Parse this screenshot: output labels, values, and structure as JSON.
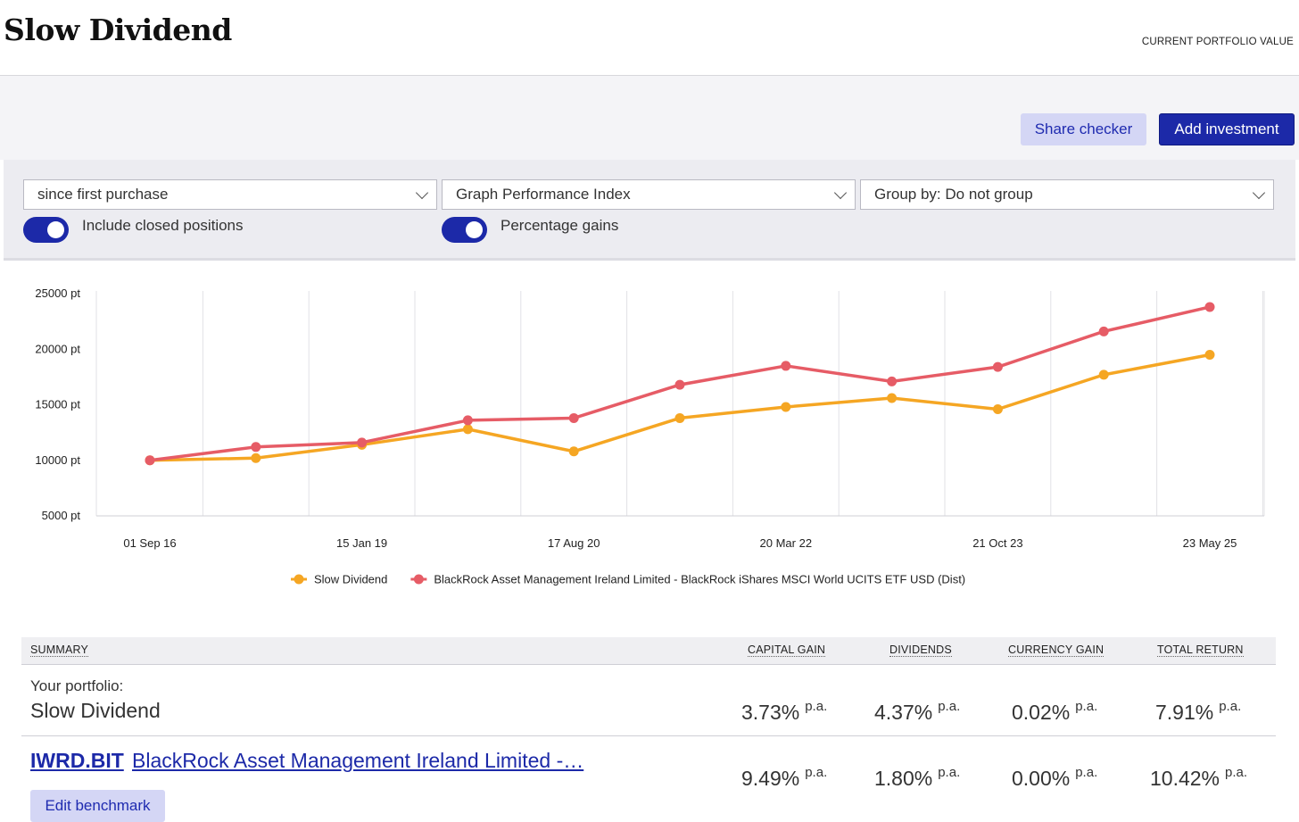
{
  "header": {
    "title": "Slow Dividend",
    "portfolio_value_label": "CURRENT PORTFOLIO VALUE"
  },
  "actions": {
    "share_checker": "Share checker",
    "add_investment": "Add investment"
  },
  "filters": {
    "period": "since first purchase",
    "graph_type": "Graph Performance Index",
    "group_by": "Group by: Do not group",
    "include_closed": {
      "label": "Include closed positions",
      "on": true
    },
    "percentage_gains": {
      "label": "Percentage gains",
      "on": true
    }
  },
  "colors": {
    "accent": "#1c29a8",
    "series_portfolio": "#f5a623",
    "series_benchmark": "#e65c66"
  },
  "chart_data": {
    "type": "line",
    "x": [
      "01 Sep 16",
      "",
      "15 Jan 19",
      "",
      "17 Aug 20",
      "",
      "20 Mar 22",
      "",
      "21 Oct 23",
      "",
      "23 May 25"
    ],
    "x_positions": [
      0,
      1,
      2,
      3,
      4,
      5,
      6,
      7,
      8,
      9,
      10
    ],
    "point_x": [
      0,
      1,
      2,
      3,
      4,
      5,
      6,
      7,
      8,
      9,
      10
    ],
    "y_ticks": [
      "25000 pt",
      "20000 pt",
      "15000 pt",
      "10000 pt",
      "5000 pt"
    ],
    "ylim": [
      5000,
      25000
    ],
    "grid": "vertical",
    "legend_position": "bottom",
    "series": [
      {
        "name": "Slow Dividend",
        "color": "#f5a623",
        "values": [
          10000,
          10200,
          11400,
          12800,
          10800,
          13800,
          14800,
          15600,
          14600,
          17700,
          19500
        ]
      },
      {
        "name": "BlackRock Asset Management Ireland Limited - BlackRock iShares MSCI World UCITS ETF USD (Dist)",
        "color": "#e65c66",
        "values": [
          10000,
          11200,
          11600,
          13600,
          13800,
          16800,
          18500,
          17100,
          18400,
          21600,
          23800
        ]
      }
    ]
  },
  "summary": {
    "headers": {
      "summary": "SUMMARY",
      "capital_gain": "CAPITAL GAIN",
      "dividends": "DIVIDENDS",
      "currency_gain": "CURRENCY GAIN",
      "total_return": "TOTAL RETURN"
    },
    "portfolio": {
      "caption": "Your portfolio:",
      "name": "Slow Dividend",
      "capital_gain": "3.73%",
      "dividends": "4.37%",
      "currency_gain": "0.02%",
      "total_return": "7.91%"
    },
    "benchmark": {
      "ticker": "IWRD.BIT",
      "name": "BlackRock Asset Management Ireland Limited -…",
      "capital_gain": "9.49%",
      "dividends": "1.80%",
      "currency_gain": "0.00%",
      "total_return": "10.42%",
      "edit_label": "Edit benchmark"
    },
    "pa": "p.a."
  }
}
